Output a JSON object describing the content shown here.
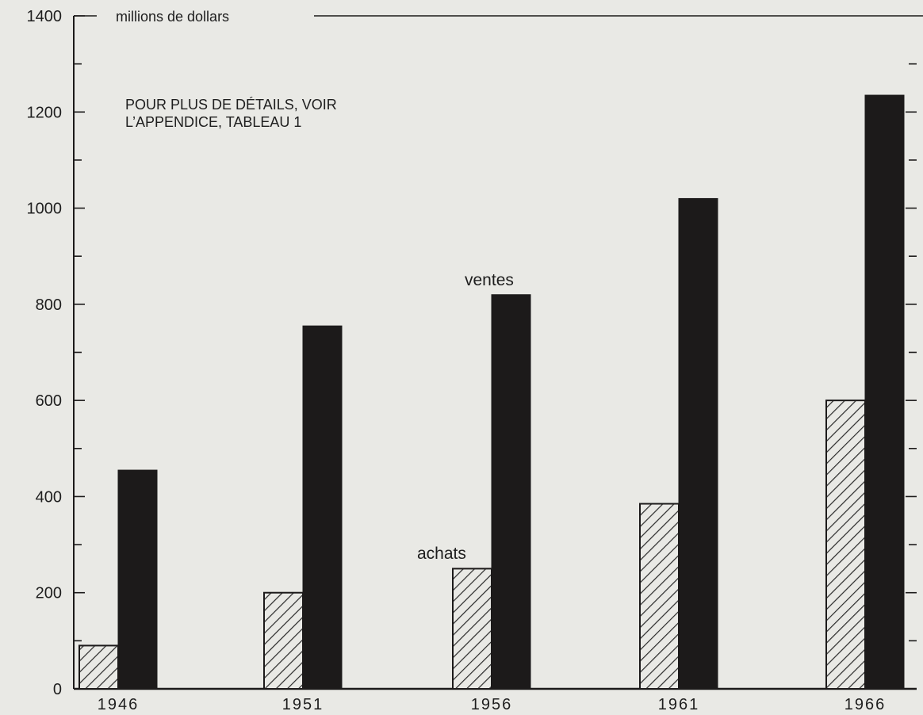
{
  "chart_data": {
    "type": "bar",
    "categories": [
      "1946",
      "1951",
      "1956",
      "1961",
      "1966"
    ],
    "series": [
      {
        "name": "achats",
        "values": [
          90,
          200,
          250,
          385,
          600
        ]
      },
      {
        "name": "ventes",
        "values": [
          455,
          755,
          820,
          1020,
          1235
        ]
      }
    ],
    "ylim": [
      0,
      1400
    ],
    "yticks": [
      0,
      200,
      400,
      600,
      800,
      1000,
      1200,
      1400
    ],
    "ytick_labels": [
      "0",
      "200",
      "400",
      "600",
      "800",
      "1000",
      "1200",
      "1400"
    ],
    "ylabel": "millions de dollars",
    "note_line1": "POUR PLUS DE DÉTAILS, VOIR",
    "note_line2": "L’APPENDICE, TABLEAU 1",
    "legend": "inline annotations",
    "grid": false,
    "colors": {
      "achats": "#e9e9e5",
      "ventes": "#1c1a1a",
      "background": "#e9e9e5"
    }
  }
}
